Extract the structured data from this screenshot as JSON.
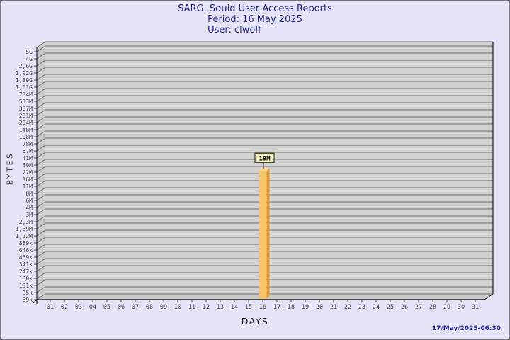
{
  "header": {
    "title": "SARG, Squid User Access Reports",
    "period": "Period: 16 May 2025",
    "user": "User: clwolf"
  },
  "footer": {
    "timestamp": "17/May/2025-06:30"
  },
  "colors": {
    "page_bg": "#E4E4F6",
    "page_border": "#71717C",
    "title_text": "#2A2A94",
    "timestamp_text": "#2525AD",
    "plot_bg": "#D2D2D2",
    "wall_bg": "#CBCBCB",
    "grid_line": "#6E6E6E",
    "axis_line": "#000000",
    "tick_text": "#4A4A4A",
    "bar_front": "#FBC367",
    "bar_side": "#DD9C3E",
    "bar_top": "#FFD98E",
    "value_box_bg": "#F5F2C4",
    "value_box_border": "#3A3A20",
    "value_text": "#000000"
  },
  "chart_data": {
    "type": "bar",
    "title": "SARG, Squid User Access Reports",
    "subtitle_period": "Period: 16 May 2025",
    "subtitle_user": "User: clwolf",
    "xlabel": "DAYS",
    "ylabel": "BYTES",
    "scale": "log",
    "grid": true,
    "legend": "none",
    "ylim": [
      69000,
      5000000000
    ],
    "yticks": [
      "5G",
      "4G",
      "2,6G",
      "1,92G",
      "1,39G",
      "1,01G",
      "734M",
      "533M",
      "387M",
      "281M",
      "204M",
      "148M",
      "108M",
      "78M",
      "57M",
      "41M",
      "30M",
      "22M",
      "16M",
      "11M",
      "8M",
      "6M",
      "4M",
      "3M",
      "2,3M",
      "1,69M",
      "1,22M",
      "889k",
      "646k",
      "469k",
      "341k",
      "247k",
      "180k",
      "131k",
      "95k",
      "69k"
    ],
    "categories": [
      "01",
      "02",
      "03",
      "04",
      "05",
      "06",
      "07",
      "08",
      "09",
      "10",
      "11",
      "12",
      "13",
      "14",
      "15",
      "16",
      "17",
      "18",
      "19",
      "20",
      "21",
      "22",
      "23",
      "24",
      "25",
      "26",
      "27",
      "28",
      "29",
      "30",
      "31"
    ],
    "values": [
      0,
      0,
      0,
      0,
      0,
      0,
      0,
      0,
      0,
      0,
      0,
      0,
      0,
      0,
      0,
      19000000,
      0,
      0,
      0,
      0,
      0,
      0,
      0,
      0,
      0,
      0,
      0,
      0,
      0,
      0,
      0
    ],
    "bar_value_labels": [
      "",
      "",
      "",
      "",
      "",
      "",
      "",
      "",
      "",
      "",
      "",
      "",
      "",
      "",
      "",
      "19M",
      "",
      "",
      "",
      "",
      "",
      "",
      "",
      "",
      "",
      "",
      "",
      "",
      "",
      "",
      ""
    ]
  }
}
